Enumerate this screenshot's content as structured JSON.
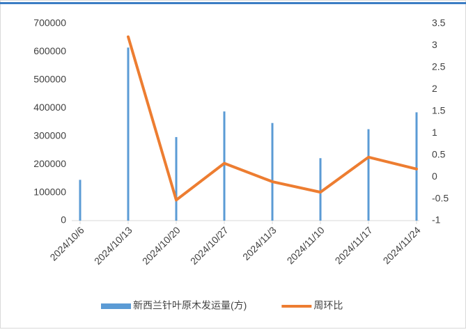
{
  "chart_data": {
    "type": "bar-line",
    "categories": [
      "2024/10/6",
      "2024/10/13",
      "2024/10/20",
      "2024/10/27",
      "2024/11/3",
      "2024/11/10",
      "2024/11/17",
      "2024/11/24"
    ],
    "series": [
      {
        "name": "新西兰针叶原木发运量(方)",
        "type": "bar",
        "color": "#5b9bd5",
        "values": [
          145000,
          615000,
          297000,
          388000,
          347000,
          222000,
          325000,
          385000
        ]
      },
      {
        "name": "周环比",
        "type": "line",
        "axis": "y2",
        "color": "#ed7d31",
        "values": [
          null,
          3.2,
          -0.53,
          0.31,
          -0.11,
          -0.35,
          0.45,
          0.18
        ]
      }
    ],
    "ylim": [
      0,
      700000
    ],
    "yticks": [
      0,
      100000,
      200000,
      300000,
      400000,
      500000,
      600000,
      700000
    ],
    "y2lim": [
      -1,
      3.5
    ],
    "y2ticks": [
      -1,
      -0.5,
      0,
      0.5,
      1,
      1.5,
      2,
      2.5,
      3,
      3.5
    ],
    "grid": false,
    "legend": "bottom"
  }
}
